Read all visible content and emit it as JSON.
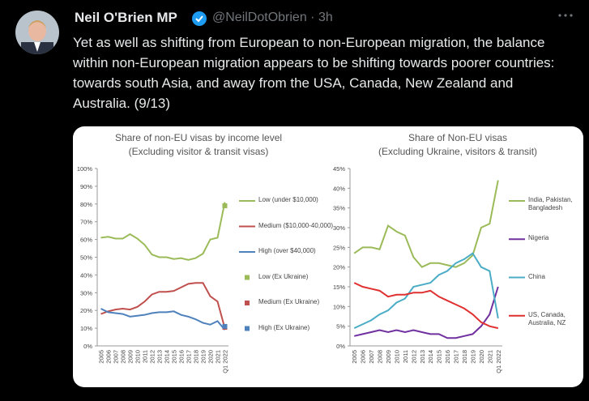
{
  "tweet": {
    "name": "Neil O'Brien MP",
    "meta": "@NeilDotObrien · 3h",
    "text": "Yet as well as shifting from European to non-European migration, the balance within non-European migration appears to be shifting towards poorer countries: towards south Asia, and away from the USA, Canada, New Zealand and Australia. (9/13)"
  },
  "chart_data": [
    {
      "type": "line",
      "title": "Share of non-EU visas by income level",
      "subtitle": "(Excluding visitor & transit visas)",
      "categories": [
        "2005",
        "2006",
        "2007",
        "2008",
        "2009",
        "2010",
        "2011",
        "2012",
        "2013",
        "2014",
        "2015",
        "2016",
        "2017",
        "2018",
        "2019",
        "2020",
        "2021",
        "Q1 2022"
      ],
      "ylim": [
        0,
        100
      ],
      "yticks": [
        {
          "value": 0,
          "label": "0%"
        },
        {
          "value": 10,
          "label": "10%"
        },
        {
          "value": 20,
          "label": "20%"
        },
        {
          "value": 30,
          "label": "30%"
        },
        {
          "value": 40,
          "label": "40%"
        },
        {
          "value": 50,
          "label": "50%"
        },
        {
          "value": 60,
          "label": "60%"
        },
        {
          "value": 70,
          "label": "70%"
        },
        {
          "value": 80,
          "label": "80%"
        },
        {
          "value": 90,
          "label": "90%"
        },
        {
          "value": 100,
          "label": "100%"
        }
      ],
      "series": [
        {
          "name": "Low (under $10,000)",
          "color": "#9bbb59",
          "values": [
            61,
            61.5,
            60.5,
            60.5,
            63,
            60.5,
            57,
            51.5,
            50,
            50,
            49,
            49.5,
            48.5,
            49.5,
            52,
            60,
            61,
            81
          ]
        },
        {
          "name": "Medium ($10,000-40,000)",
          "color": "#c0504d",
          "values": [
            18,
            19.5,
            20.5,
            21,
            20.5,
            22,
            25,
            29,
            30.5,
            30.5,
            31,
            33,
            35,
            35.5,
            35.5,
            28,
            25,
            10
          ]
        },
        {
          "name": "High (over $40,000)",
          "color": "#4f81bd",
          "values": [
            21,
            19,
            18.5,
            18,
            16.5,
            17,
            17.5,
            18.5,
            19,
            19,
            19.5,
            17.5,
            16.5,
            15,
            13,
            12,
            14,
            9
          ]
        },
        {
          "name": "Low (Ex Ukraine)",
          "color": "#9bbb59",
          "marker": "square",
          "values": [
            null,
            null,
            null,
            null,
            null,
            null,
            null,
            null,
            null,
            null,
            null,
            null,
            null,
            null,
            null,
            null,
            null,
            79
          ]
        },
        {
          "name": "Medium (Ex Ukraine)",
          "color": "#c0504d",
          "marker": "square",
          "values": [
            null,
            null,
            null,
            null,
            null,
            null,
            null,
            null,
            null,
            null,
            null,
            null,
            null,
            null,
            null,
            null,
            null,
            10.5
          ]
        },
        {
          "name": "High (Ex Ukraine)",
          "color": "#4f81bd",
          "marker": "square",
          "values": [
            null,
            null,
            null,
            null,
            null,
            null,
            null,
            null,
            null,
            null,
            null,
            null,
            null,
            null,
            null,
            null,
            null,
            11
          ]
        }
      ]
    },
    {
      "type": "line",
      "title": "Share of Non-EU visas",
      "subtitle": "(Excluding Ukraine, visitors & transit)",
      "categories": [
        "2005",
        "2006",
        "2007",
        "2008",
        "2009",
        "2010",
        "2011",
        "2012",
        "2013",
        "2014",
        "2015",
        "2016",
        "2017",
        "2018",
        "2019",
        "2020",
        "2021",
        "Q1 2022"
      ],
      "ylim": [
        0,
        45
      ],
      "yticks": [
        {
          "value": 0,
          "label": "0%"
        },
        {
          "value": 5,
          "label": "5%"
        },
        {
          "value": 10,
          "label": "10%"
        },
        {
          "value": 15,
          "label": "15%"
        },
        {
          "value": 20,
          "label": "20%"
        },
        {
          "value": 25,
          "label": "25%"
        },
        {
          "value": 30,
          "label": "30%"
        },
        {
          "value": 35,
          "label": "35%"
        },
        {
          "value": 40,
          "label": "40%"
        },
        {
          "value": 45,
          "label": "45%"
        }
      ],
      "series": [
        {
          "name": "India, Pakistan, Bangladesh",
          "color": "#9bbb59",
          "values": [
            23.5,
            25,
            25,
            24.5,
            30.5,
            29,
            28,
            22.5,
            20,
            21,
            21,
            20.5,
            20,
            21,
            23,
            30,
            31,
            42
          ]
        },
        {
          "name": "Nigeria",
          "color": "#7030a0",
          "values": [
            2.5,
            3,
            3.5,
            4,
            3.5,
            4,
            3.5,
            4,
            3.5,
            3,
            3,
            2,
            2,
            2.5,
            3,
            5,
            8,
            15
          ]
        },
        {
          "name": "China",
          "color": "#4bacc6",
          "values": [
            4.5,
            5.5,
            6.5,
            8,
            9,
            11,
            12,
            15,
            15.5,
            16,
            18,
            19,
            21,
            22,
            23.5,
            20,
            19,
            7
          ]
        },
        {
          "name": "US, Canada, Australia, NZ",
          "color": "#e03030",
          "values": [
            16,
            15,
            14.5,
            14,
            12.5,
            13,
            13,
            13.5,
            13.5,
            14,
            12.5,
            11.5,
            10.5,
            9.5,
            8,
            6,
            5,
            4.5
          ]
        }
      ]
    }
  ]
}
